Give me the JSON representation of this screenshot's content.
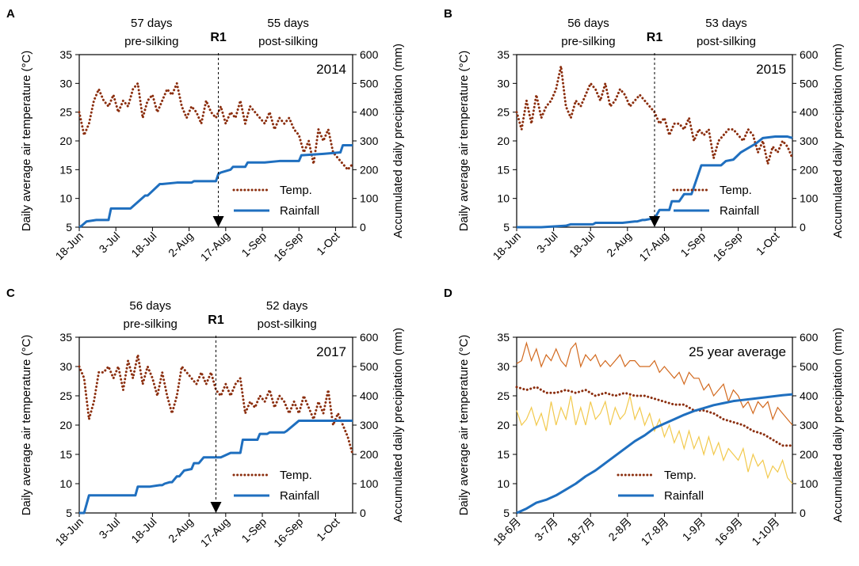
{
  "figure": {
    "colors": {
      "temp": "#8B2E0E",
      "rain": "#1F6FBF",
      "max": "#D2691E",
      "min": "#F2C94C"
    },
    "left_axis_label": "Daily average air temperature (°C)",
    "right_axis_label": "Accumulated daily precipitation (mm)",
    "legend_temp": "Temp.",
    "legend_rain": "Rainfall"
  },
  "chart_data": [
    {
      "letter": "A",
      "type": "line",
      "year_label": "2014",
      "pre_days": "57 days",
      "pre_label": "pre-silking",
      "post_days": "55 days",
      "post_label": "post-silking",
      "r1_label": "R1",
      "r1_day": 57,
      "x_ticks": [
        "18-Jun",
        "3-Jul",
        "18-Jul",
        "2-Aug",
        "17-Aug",
        "1-Sep",
        "16-Sep",
        "1-Oct"
      ],
      "y_left_ticks": [
        "5",
        "10",
        "15",
        "20",
        "25",
        "30",
        "35"
      ],
      "y_right_ticks": [
        "0",
        "100",
        "200",
        "300",
        "400",
        "500",
        "600"
      ],
      "ylim_left": [
        5,
        35
      ],
      "ylim_right": [
        0,
        600
      ],
      "xlim": [
        0,
        112
      ],
      "temp_x": [
        0,
        2,
        4,
        6,
        8,
        10,
        12,
        14,
        16,
        18,
        20,
        22,
        24,
        26,
        28,
        30,
        32,
        34,
        36,
        38,
        40,
        42,
        44,
        46,
        48,
        50,
        52,
        54,
        56,
        58,
        60,
        62,
        64,
        66,
        68,
        70,
        72,
        74,
        76,
        78,
        80,
        82,
        84,
        86,
        88,
        90,
        92,
        94,
        96,
        98,
        100,
        102,
        104,
        106,
        108,
        110,
        112
      ],
      "temp": [
        25,
        21,
        23,
        27,
        29,
        27,
        26,
        28,
        25,
        27,
        26,
        29,
        30,
        24,
        27,
        28,
        25,
        27,
        29,
        28,
        30,
        26,
        24,
        26,
        25,
        23,
        27,
        25,
        24,
        26,
        23,
        25,
        24,
        27,
        23,
        26,
        25,
        24,
        23,
        25,
        22,
        24,
        23,
        24,
        22,
        21,
        18,
        20,
        16,
        22,
        20,
        22,
        18,
        17,
        16,
        15,
        16
      ],
      "rain_x": [
        0,
        1,
        3,
        7,
        12,
        13,
        20,
        21,
        27,
        28,
        33,
        34,
        40,
        46,
        47,
        52,
        56,
        57,
        58,
        62,
        63,
        68,
        69,
        76,
        82,
        90,
        91,
        100,
        107,
        108,
        112
      ],
      "rain": [
        0,
        5,
        20,
        25,
        25,
        65,
        65,
        65,
        110,
        110,
        150,
        150,
        155,
        155,
        160,
        160,
        160,
        185,
        190,
        200,
        210,
        210,
        225,
        225,
        230,
        230,
        250,
        255,
        260,
        285,
        285
      ]
    },
    {
      "letter": "B",
      "type": "line",
      "year_label": "2015",
      "pre_days": "56 days",
      "pre_label": "pre-silking",
      "post_days": "53 days",
      "post_label": "post-silking",
      "r1_label": "R1",
      "r1_day": 56,
      "x_ticks": [
        "18-Jun",
        "3-Jul",
        "18-Jul",
        "2-Aug",
        "17-Aug",
        "1-Sep",
        "16-Sep",
        "1-Oct"
      ],
      "y_left_ticks": [
        "5",
        "10",
        "15",
        "20",
        "25",
        "30",
        "35"
      ],
      "y_right_ticks": [
        "0",
        "100",
        "200",
        "300",
        "400",
        "500",
        "600"
      ],
      "ylim_left": [
        5,
        35
      ],
      "ylim_right": [
        0,
        600
      ],
      "xlim": [
        0,
        112
      ],
      "temp_x": [
        0,
        2,
        4,
        6,
        8,
        10,
        12,
        14,
        16,
        18,
        20,
        22,
        24,
        26,
        28,
        30,
        32,
        34,
        36,
        38,
        40,
        42,
        44,
        46,
        48,
        50,
        52,
        54,
        56,
        58,
        60,
        62,
        64,
        66,
        68,
        70,
        72,
        74,
        76,
        78,
        80,
        82,
        84,
        86,
        88,
        90,
        92,
        94,
        96,
        98,
        100,
        102,
        104,
        106,
        108,
        110,
        112
      ],
      "temp": [
        25,
        22,
        27,
        23,
        28,
        24,
        26,
        27,
        29,
        33,
        26,
        24,
        27,
        26,
        28,
        30,
        29,
        27,
        30,
        26,
        27,
        29,
        28,
        26,
        27,
        28,
        27,
        26,
        25,
        23,
        24,
        21,
        23,
        23,
        22,
        24,
        20,
        22,
        21,
        22,
        17,
        20,
        21,
        22,
        22,
        21,
        20,
        22,
        21,
        18,
        20,
        16,
        19,
        18,
        20,
        19,
        17
      ],
      "rain_x": [
        0,
        10,
        20,
        22,
        31,
        32,
        41,
        43,
        48,
        49,
        51,
        52,
        55,
        56,
        58,
        62,
        63,
        66,
        68,
        71,
        75,
        78,
        83,
        85,
        88,
        91,
        97,
        100,
        105,
        110,
        112
      ],
      "rain": [
        0,
        0,
        5,
        10,
        10,
        15,
        15,
        15,
        20,
        20,
        25,
        25,
        30,
        30,
        60,
        60,
        90,
        90,
        115,
        115,
        215,
        215,
        215,
        230,
        235,
        260,
        290,
        310,
        315,
        315,
        310
      ]
    },
    {
      "letter": "C",
      "type": "line",
      "year_label": "2017",
      "pre_days": "56 days",
      "pre_label": "pre-silking",
      "post_days": "52 days",
      "post_label": "post-silking",
      "r1_label": "R1",
      "r1_day": 56,
      "x_ticks": [
        "18-Jun",
        "3-Jul",
        "18-Jul",
        "2-Aug",
        "17-Aug",
        "1-Sep",
        "16-Sep",
        "1-Oct"
      ],
      "y_left_ticks": [
        "5",
        "10",
        "15",
        "20",
        "25",
        "30",
        "35"
      ],
      "y_right_ticks": [
        "0",
        "100",
        "200",
        "300",
        "400",
        "500",
        "600"
      ],
      "ylim_left": [
        5,
        35
      ],
      "ylim_right": [
        0,
        600
      ],
      "xlim": [
        0,
        112
      ],
      "temp_x": [
        0,
        2,
        4,
        6,
        8,
        10,
        12,
        14,
        16,
        18,
        20,
        22,
        24,
        26,
        28,
        30,
        32,
        34,
        36,
        38,
        40,
        42,
        44,
        46,
        48,
        50,
        52,
        54,
        56,
        58,
        60,
        62,
        64,
        66,
        68,
        70,
        72,
        74,
        76,
        78,
        80,
        82,
        84,
        86,
        88,
        90,
        92,
        94,
        96,
        98,
        100,
        102,
        104,
        106,
        108,
        110,
        112
      ],
      "temp": [
        30,
        28,
        21,
        24,
        29,
        29,
        30,
        28,
        30,
        26,
        31,
        28,
        32,
        27,
        30,
        28,
        25,
        29,
        25,
        22,
        25,
        30,
        29,
        28,
        27,
        29,
        27,
        29,
        26,
        25,
        27,
        25,
        27,
        28,
        22,
        24,
        23,
        25,
        24,
        26,
        23,
        25,
        24,
        22,
        24,
        22,
        25,
        23,
        21,
        24,
        22,
        26,
        20,
        22,
        20,
        18,
        15
      ],
      "rain_x": [
        0,
        2,
        4,
        14,
        15,
        23,
        24,
        27,
        29,
        33,
        34,
        35,
        37,
        38,
        40,
        41,
        43,
        46,
        47,
        49,
        51,
        56,
        57,
        58,
        62,
        66,
        67,
        73,
        74,
        77,
        78,
        84,
        85,
        90,
        100,
        112
      ],
      "rain": [
        0,
        0,
        60,
        60,
        60,
        60,
        90,
        90,
        90,
        95,
        95,
        100,
        105,
        105,
        125,
        125,
        145,
        150,
        170,
        170,
        190,
        190,
        190,
        190,
        205,
        205,
        250,
        250,
        270,
        270,
        275,
        275,
        280,
        315,
        315,
        315
      ]
    },
    {
      "letter": "D",
      "type": "line",
      "year_label": "25 year average",
      "x_ticks": [
        "18-6月",
        "3-7月",
        "18-7月",
        "2-8月",
        "17-8月",
        "1-9月",
        "16-9月",
        "1-10月"
      ],
      "y_left_ticks": [
        "5",
        "10",
        "15",
        "20",
        "25",
        "30",
        "35"
      ],
      "y_right_ticks": [
        "0",
        "100",
        "200",
        "300",
        "400",
        "500",
        "600"
      ],
      "ylim_left": [
        5,
        35
      ],
      "ylim_right": [
        0,
        600
      ],
      "xlim": [
        0,
        112
      ],
      "temp_x": [
        0,
        4,
        8,
        12,
        16,
        20,
        24,
        28,
        32,
        36,
        40,
        44,
        48,
        52,
        56,
        60,
        64,
        68,
        72,
        76,
        80,
        84,
        88,
        92,
        96,
        100,
        104,
        108,
        112
      ],
      "temp": [
        26.5,
        26,
        26.5,
        25.5,
        25.5,
        26,
        25.5,
        26,
        25,
        25.5,
        25,
        25.5,
        25,
        25,
        24.5,
        24,
        23.5,
        23.5,
        22.5,
        22.5,
        22,
        21,
        20.5,
        20,
        19,
        18.5,
        17.5,
        16.5,
        16.5
      ],
      "max_x": [
        0,
        2,
        4,
        6,
        8,
        10,
        12,
        14,
        16,
        18,
        20,
        22,
        24,
        26,
        28,
        30,
        32,
        34,
        36,
        38,
        40,
        42,
        44,
        46,
        48,
        50,
        52,
        54,
        56,
        58,
        60,
        62,
        64,
        66,
        68,
        70,
        72,
        74,
        76,
        78,
        80,
        82,
        84,
        86,
        88,
        90,
        92,
        94,
        96,
        98,
        100,
        102,
        104,
        106,
        108,
        110,
        112
      ],
      "max": [
        30.5,
        31,
        34,
        31,
        33,
        30,
        32,
        31,
        33,
        31,
        30,
        33,
        34,
        30,
        32,
        31,
        32,
        30,
        31,
        30,
        31,
        32,
        30,
        31,
        31,
        30,
        30,
        30,
        31,
        29,
        30,
        29,
        28,
        29,
        27,
        29,
        28,
        28,
        26,
        27,
        25,
        26,
        27,
        24,
        26,
        25,
        23,
        24,
        22,
        24,
        23,
        24,
        21,
        23,
        22,
        21,
        20
      ],
      "min_x": [
        0,
        2,
        4,
        6,
        8,
        10,
        12,
        14,
        16,
        18,
        20,
        22,
        24,
        26,
        28,
        30,
        32,
        34,
        36,
        38,
        40,
        42,
        44,
        46,
        48,
        50,
        52,
        54,
        56,
        58,
        60,
        62,
        64,
        66,
        68,
        70,
        72,
        74,
        76,
        78,
        80,
        82,
        84,
        86,
        88,
        90,
        92,
        94,
        96,
        98,
        100,
        102,
        104,
        106,
        108,
        110,
        112
      ],
      "min": [
        22.5,
        20,
        21,
        23,
        20,
        22,
        19,
        24,
        20,
        23,
        21,
        25,
        20,
        23,
        20,
        24,
        21,
        22,
        24,
        20,
        23,
        21,
        22,
        25,
        21,
        23,
        20,
        22,
        19,
        21,
        18,
        20,
        17,
        19,
        16,
        19,
        16,
        18,
        15,
        18,
        15,
        17,
        14,
        16,
        15,
        14,
        16,
        12,
        15,
        13,
        14,
        11,
        13,
        12,
        14,
        11,
        10
      ],
      "rain_x": [
        0,
        4,
        8,
        12,
        16,
        20,
        24,
        28,
        32,
        36,
        40,
        44,
        48,
        52,
        56,
        60,
        64,
        68,
        72,
        76,
        80,
        84,
        88,
        92,
        96,
        100,
        104,
        108,
        112
      ],
      "rain": [
        0,
        15,
        35,
        45,
        60,
        80,
        100,
        125,
        145,
        170,
        195,
        220,
        245,
        265,
        290,
        305,
        320,
        335,
        348,
        358,
        368,
        375,
        382,
        386,
        390,
        394,
        398,
        402,
        405
      ]
    }
  ]
}
